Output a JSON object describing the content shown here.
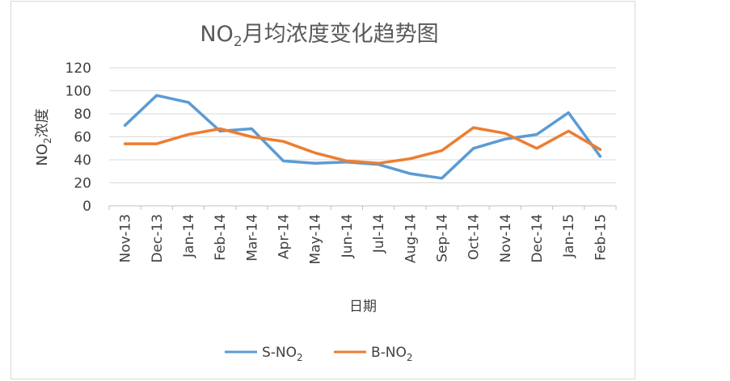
{
  "chart_data": {
    "type": "line",
    "title": {
      "main": "NO",
      "sub": "2",
      "rest": "月均浓度变化趋势图"
    },
    "xlabel": "日期",
    "ylabel": {
      "main": "NO",
      "sub": "2",
      "rest": "浓度"
    },
    "categories": [
      "Nov-13",
      "Dec-13",
      "Jan-14",
      "Feb-14",
      "Mar-14",
      "Apr-14",
      "May-14",
      "Jun-14",
      "Jul-14",
      "Aug-14",
      "Sep-14",
      "Oct-14",
      "Nov-14",
      "Dec-14",
      "Jan-15",
      "Feb-15"
    ],
    "yticks": [
      "0",
      "20",
      "40",
      "60",
      "80",
      "100",
      "120"
    ],
    "ylim": [
      0,
      120
    ],
    "grid": true,
    "legend_position": "bottom",
    "series": [
      {
        "name": {
          "main": "S-NO",
          "sub": "2"
        },
        "color": "#5b9bd5",
        "values": [
          70,
          96,
          90,
          65,
          67,
          39,
          37,
          38,
          36,
          28,
          24,
          50,
          58,
          62,
          81,
          43
        ]
      },
      {
        "name": {
          "main": "B-NO",
          "sub": "2"
        },
        "color": "#ed7d31",
        "values": [
          54,
          54,
          62,
          67,
          60,
          56,
          46,
          39,
          37,
          41,
          48,
          68,
          63,
          50,
          65,
          49
        ]
      }
    ]
  }
}
